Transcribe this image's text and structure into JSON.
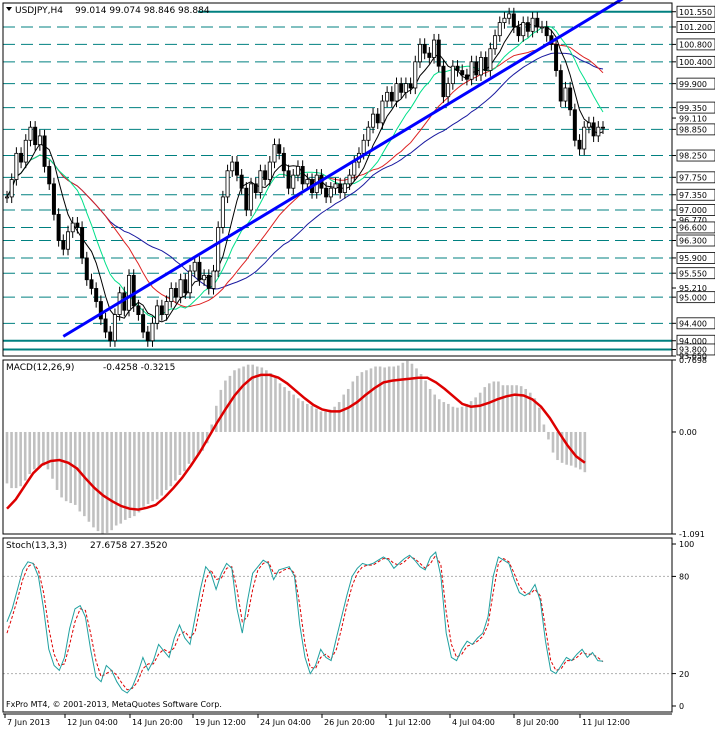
{
  "header": {
    "symbol": "USDJPY,H4",
    "ohlc": "99.014 99.074 98.846 98.884",
    "menu_arrow_icon": "triangle-down-icon"
  },
  "colors": {
    "background": "#ffffff",
    "frame": "#000000",
    "candle": "#000000",
    "level_line": "#008080",
    "trend_line": "#0000ff",
    "ma_black": "#000000",
    "ma_green": "#00e08a",
    "ma_red": "#dd2222",
    "ma_navy": "#1a1aa0",
    "macd_hist": "#c0c0c0",
    "macd_signal": "#dd0000",
    "stoch_main": "#20a0a0",
    "stoch_signal": "#dd0000"
  },
  "chart_data": [
    {
      "type": "candlestick",
      "name": "USDJPY,H4",
      "ylim": [
        93.65,
        101.75
      ],
      "levels": [
        101.55,
        101.2,
        100.8,
        100.4,
        99.9,
        99.35,
        98.85,
        98.25,
        97.75,
        97.35,
        97.0,
        96.6,
        96.3,
        95.9,
        95.55,
        95.0,
        94.4,
        94.0,
        93.8
      ],
      "solid_levels": [
        101.55,
        94.0,
        93.8
      ],
      "axis_labels": [
        "101.550",
        "101.200",
        "100.800",
        "100.400",
        "99.900",
        "99.350",
        "99.110",
        "98.850",
        "98.250",
        "97.750",
        "97.350",
        "97.000",
        "96.770",
        "96.600",
        "96.300",
        "95.900",
        "95.550",
        "95.210",
        "95.000",
        "94.400",
        "94.000",
        "93.800",
        "93.650"
      ],
      "current_price": 98.884,
      "trend_line": {
        "from": [
          12,
          94.1
        ],
        "to": [
          132,
          101.9
        ]
      },
      "closes": [
        97.3,
        97.7,
        98.3,
        98.1,
        98.6,
        98.9,
        98.5,
        98.7,
        98.0,
        97.6,
        96.9,
        96.3,
        96.1,
        96.5,
        96.7,
        96.6,
        95.9,
        95.4,
        95.2,
        94.9,
        94.5,
        94.2,
        94.0,
        94.6,
        95.1,
        94.7,
        95.5,
        94.8,
        94.6,
        94.2,
        94.0,
        94.4,
        94.8,
        94.6,
        94.9,
        95.2,
        95.0,
        95.4,
        95.1,
        95.6,
        95.8,
        95.4,
        95.5,
        95.2,
        95.6,
        96.6,
        97.3,
        97.9,
        98.1,
        97.8,
        97.5,
        97.0,
        97.6,
        97.4,
        97.9,
        97.7,
        98.1,
        98.5,
        98.3,
        97.9,
        97.5,
        97.8,
        98.0,
        97.6,
        97.7,
        97.4,
        97.8,
        97.5,
        97.3,
        97.5,
        97.6,
        97.4,
        97.6,
        97.8,
        98.1,
        98.3,
        98.6,
        98.9,
        99.2,
        99.0,
        99.5,
        99.7,
        99.5,
        99.9,
        99.7,
        99.9,
        99.8,
        100.4,
        100.8,
        100.6,
        100.5,
        100.9,
        100.3,
        99.6,
        99.9,
        100.3,
        100.2,
        100.1,
        100.0,
        100.4,
        100.1,
        100.5,
        100.2,
        100.7,
        101.0,
        101.3,
        101.4,
        101.5,
        101.2,
        101.0,
        101.3,
        101.1,
        101.4,
        101.2,
        101.2,
        101.0,
        100.8,
        100.2,
        99.5,
        99.8,
        99.3,
        98.6,
        98.4,
        98.9,
        99.0,
        98.7,
        98.9,
        98.884
      ]
    },
    {
      "type": "bar",
      "name": "MACD(12,26,9)",
      "values_text": "-0.4258 -0.3215",
      "ylim": [
        -1.091,
        0.7698
      ],
      "axis_labels": [
        "0.7698",
        "0.00",
        "-1.091"
      ],
      "histogram": [
        -0.55,
        -0.6,
        -0.6,
        -0.58,
        -0.52,
        -0.45,
        -0.4,
        -0.38,
        -0.36,
        -0.4,
        -0.5,
        -0.62,
        -0.7,
        -0.74,
        -0.76,
        -0.78,
        -0.85,
        -0.9,
        -0.96,
        -1.02,
        -1.06,
        -1.09,
        -1.08,
        -1.05,
        -1.0,
        -0.98,
        -0.94,
        -0.92,
        -0.9,
        -0.86,
        -0.8,
        -0.77,
        -0.74,
        -0.72,
        -0.68,
        -0.62,
        -0.58,
        -0.52,
        -0.46,
        -0.42,
        -0.34,
        -0.3,
        -0.24,
        -0.2,
        -0.12,
        0.08,
        0.28,
        0.45,
        0.55,
        0.6,
        0.66,
        0.68,
        0.7,
        0.72,
        0.72,
        0.7,
        0.69,
        0.66,
        0.63,
        0.58,
        0.52,
        0.48,
        0.44,
        0.4,
        0.36,
        0.33,
        0.3,
        0.28,
        0.25,
        0.22,
        0.22,
        0.24,
        0.27,
        0.32,
        0.4,
        0.46,
        0.54,
        0.6,
        0.64,
        0.66,
        0.68,
        0.7,
        0.7,
        0.69,
        0.7,
        0.7,
        0.71,
        0.74,
        0.76,
        0.73,
        0.68,
        0.62,
        0.55,
        0.46,
        0.4,
        0.35,
        0.32,
        0.3,
        0.27,
        0.26,
        0.27,
        0.3,
        0.33,
        0.37,
        0.42,
        0.48,
        0.52,
        0.54,
        0.54,
        0.5,
        0.5,
        0.5,
        0.5,
        0.49,
        0.46,
        0.42,
        0.36,
        0.26,
        0.08,
        -0.08,
        -0.22,
        -0.3,
        -0.33,
        -0.35,
        -0.36,
        -0.38,
        -0.4,
        -0.43
      ],
      "signal": [
        -0.82,
        -0.72,
        -0.58,
        -0.44,
        -0.35,
        -0.31,
        -0.3,
        -0.33,
        -0.39,
        -0.5,
        -0.6,
        -0.68,
        -0.74,
        -0.79,
        -0.82,
        -0.83,
        -0.81,
        -0.78,
        -0.7,
        -0.6,
        -0.49,
        -0.36,
        -0.22,
        -0.06,
        0.1,
        0.25,
        0.39,
        0.5,
        0.58,
        0.61,
        0.61,
        0.58,
        0.52,
        0.44,
        0.36,
        0.29,
        0.24,
        0.22,
        0.22,
        0.26,
        0.32,
        0.4,
        0.47,
        0.53,
        0.55,
        0.56,
        0.57,
        0.58,
        0.58,
        0.53,
        0.46,
        0.38,
        0.3,
        0.27,
        0.28,
        0.31,
        0.35,
        0.38,
        0.4,
        0.39,
        0.35,
        0.27,
        0.15,
        0.0,
        -0.14,
        -0.26,
        -0.33
      ]
    },
    {
      "type": "line",
      "name": "Stoch(13,3,3)",
      "values_text": "27.6758 27.3520",
      "ylim": [
        0,
        100
      ],
      "axis_labels": [
        "100",
        "80",
        "20",
        "0"
      ],
      "main": [
        52,
        60,
        72,
        84,
        89,
        88,
        80,
        60,
        35,
        25,
        22,
        30,
        48,
        60,
        62,
        55,
        35,
        18,
        15,
        25,
        22,
        15,
        10,
        8,
        12,
        20,
        30,
        22,
        28,
        38,
        34,
        30,
        42,
        50,
        42,
        38,
        55,
        72,
        86,
        82,
        72,
        82,
        88,
        85,
        60,
        45,
        65,
        82,
        86,
        90,
        88,
        78,
        84,
        85,
        86,
        80,
        50,
        30,
        20,
        25,
        35,
        30,
        28,
        42,
        55,
        68,
        80,
        85,
        88,
        87,
        88,
        90,
        92,
        90,
        85,
        88,
        91,
        93,
        90,
        86,
        84,
        92,
        95,
        80,
        45,
        30,
        28,
        35,
        40,
        38,
        42,
        45,
        55,
        80,
        92,
        90,
        88,
        78,
        70,
        68,
        70,
        75,
        65,
        40,
        22,
        20,
        25,
        30,
        28,
        32,
        35,
        30,
        33,
        28,
        27.6758
      ],
      "signal": [
        45,
        55,
        66,
        78,
        86,
        88,
        84,
        70,
        48,
        32,
        25,
        26,
        38,
        52,
        60,
        59,
        45,
        28,
        18,
        20,
        22,
        19,
        14,
        10,
        11,
        15,
        23,
        26,
        26,
        32,
        35,
        33,
        36,
        44,
        46,
        42,
        46,
        62,
        78,
        84,
        78,
        79,
        85,
        86,
        72,
        52,
        55,
        72,
        84,
        88,
        89,
        82,
        82,
        84,
        85,
        82,
        62,
        38,
        24,
        23,
        30,
        32,
        29,
        35,
        48,
        62,
        74,
        82,
        86,
        87,
        87,
        89,
        91,
        91,
        88,
        87,
        89,
        92,
        91,
        88,
        85,
        88,
        93,
        87,
        58,
        38,
        30,
        32,
        37,
        38,
        40,
        43,
        50,
        70,
        88,
        91,
        89,
        82,
        74,
        70,
        69,
        72,
        68,
        48,
        28,
        22,
        23,
        28,
        28,
        30,
        33,
        32,
        32,
        30,
        27.352
      ]
    }
  ],
  "x_axis": {
    "labels": [
      "7 Jun 2013",
      "12 Jun 04:00",
      "14 Jun 20:00",
      "19 Jun 12:00",
      "24 Jun 04:00",
      "26 Jun 20:00",
      "1 Jul 12:00",
      "4 Jul 04:00",
      "8 Jul 20:00",
      "11 Jul 12:00"
    ]
  },
  "copyright": "FxPro MT4, © 2001-2013, MetaQuotes Software Corp."
}
